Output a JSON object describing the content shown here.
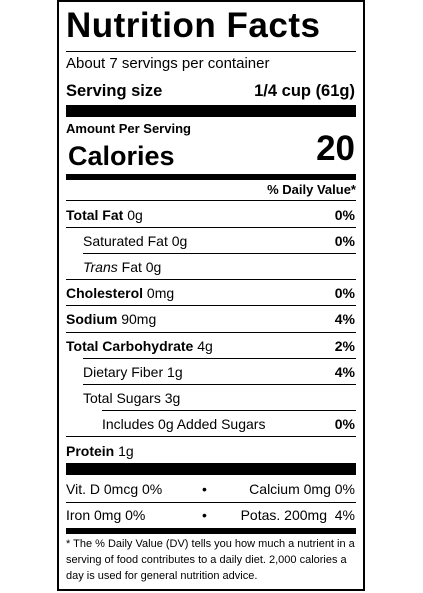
{
  "title": "Nutrition Facts",
  "servings_per_container": "About 7 servings per container",
  "serving_size": {
    "label": "Serving size",
    "value": "1/4 cup (61g)"
  },
  "amount_per_serving": "Amount Per Serving",
  "calories": {
    "label": "Calories",
    "value": "20"
  },
  "daily_value_header": "% Daily Value*",
  "nutrients": {
    "total_fat": {
      "label": "Total Fat",
      "amount": "0g",
      "dv": "0%"
    },
    "saturated_fat": {
      "label": "Saturated Fat",
      "amount": "0g",
      "dv": "0%"
    },
    "trans_fat": {
      "label_italic": "Trans",
      "label": "Fat",
      "amount": "0g"
    },
    "cholesterol": {
      "label": "Cholesterol",
      "amount": "0mg",
      "dv": "0%"
    },
    "sodium": {
      "label": "Sodium",
      "amount": "90mg",
      "dv": "4%"
    },
    "total_carbohydrate": {
      "label": "Total Carbohydrate",
      "amount": "4g",
      "dv": "2%"
    },
    "dietary_fiber": {
      "label": "Dietary Fiber",
      "amount": "1g",
      "dv": "4%"
    },
    "total_sugars": {
      "label": "Total Sugars",
      "amount": "3g"
    },
    "added_sugars": {
      "label": "Includes 0g Added Sugars",
      "dv": "0%"
    },
    "protein": {
      "label": "Protein",
      "amount": "1g"
    }
  },
  "vitamins": {
    "vit_d": "Vit. D 0mcg 0%",
    "calcium": "Calcium 0mg 0%",
    "iron": "Iron 0mg 0%",
    "potassium": "Potas. 200mg  4%",
    "separator": "•"
  },
  "footnote": "* The % Daily Value (DV) tells you how much a nutrient in a serving of food contributes to a daily diet. 2,000 calories a day is used for general nutrition advice."
}
